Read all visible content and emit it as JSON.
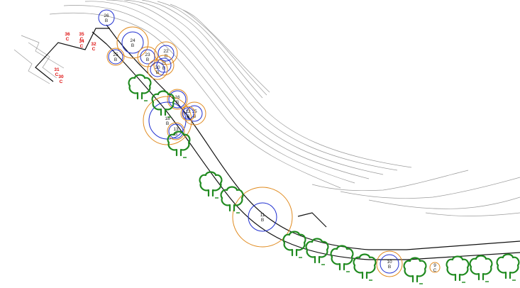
{
  "plan": {
    "existing_trees": [
      {
        "id": "26",
        "cls": "B"
      },
      {
        "id": "24",
        "cls": "B"
      },
      {
        "id": "25",
        "cls": "B"
      },
      {
        "id": "23",
        "cls": "B"
      },
      {
        "id": "22",
        "cls": "B"
      },
      {
        "id": "21",
        "cls": "B"
      },
      {
        "id": "20",
        "cls": "B"
      },
      {
        "id": "16",
        "cls": "B"
      },
      {
        "id": "15",
        "cls": "B"
      },
      {
        "id": "18",
        "cls": "B"
      },
      {
        "id": "13",
        "cls": "B"
      },
      {
        "id": "12",
        "cls": "B"
      },
      {
        "id": "11",
        "cls": "B"
      },
      {
        "id": "10",
        "cls": "B"
      },
      {
        "id": "9",
        "cls": "C"
      }
    ],
    "red_labels": [
      {
        "id": "36",
        "cls": "C"
      },
      {
        "id": "35",
        "cls": "C"
      },
      {
        "id": "34",
        "cls": "C"
      },
      {
        "id": "32",
        "cls": "C"
      },
      {
        "id": "31",
        "cls": "C"
      },
      {
        "id": "30",
        "cls": "C"
      }
    ],
    "replacement_tree_count": 13,
    "colors": {
      "contour": "#9a9a9a",
      "road": "#111111",
      "crown_orange": "#e08a1e",
      "crown_blue": "#1f2fd0",
      "replacement_tree": "#1f8a1f",
      "red_label": "#dd1111"
    },
    "icons": {
      "replacement_tree": "tree-symbol-icon"
    }
  }
}
